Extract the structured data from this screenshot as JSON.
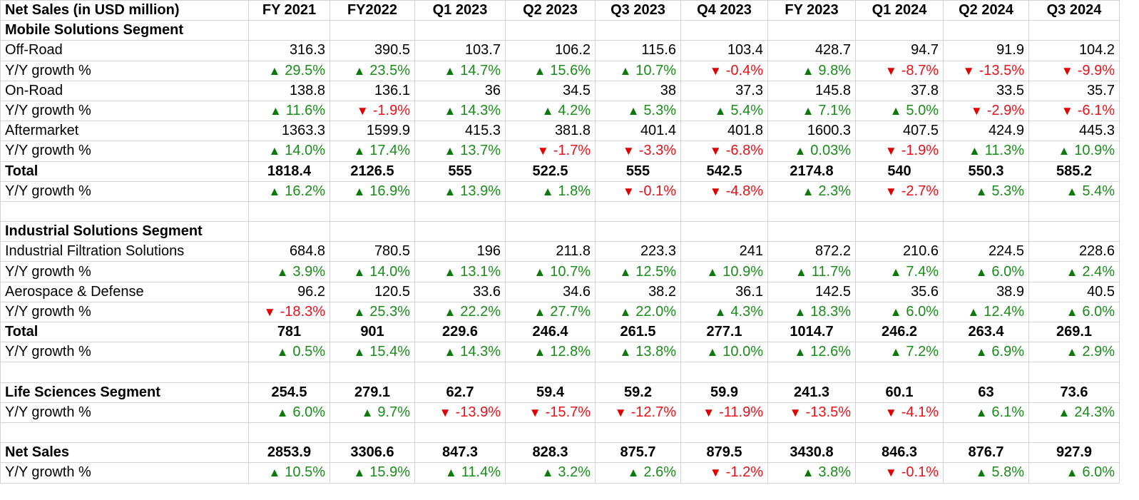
{
  "title": "Net Sales (in USD million)",
  "columns": [
    "FY 2021",
    "FY2022",
    "Q1 2023",
    "Q2 2023",
    "Q3 2023",
    "Q4 2023",
    "FY 2023",
    "Q1 2024",
    "Q2 2024",
    "Q3 2024"
  ],
  "icons": {
    "up": "triangle-up-icon",
    "down": "triangle-down-icon",
    "up_color": "#1a8c1a",
    "down_color": "#e8121a"
  },
  "rows": [
    {
      "type": "segment",
      "label": "Mobile Solutions Segment",
      "cells": []
    },
    {
      "type": "value",
      "label": "Off-Road",
      "cells": [
        "316.3",
        "390.5",
        "103.7",
        "106.2",
        "115.6",
        "103.4",
        "428.7",
        "94.7",
        "91.9",
        "104.2"
      ]
    },
    {
      "type": "growth",
      "label": "Y/Y growth %",
      "cells": [
        {
          "dir": "up",
          "text": "29.5%"
        },
        {
          "dir": "up",
          "text": "23.5%"
        },
        {
          "dir": "up",
          "text": "14.7%"
        },
        {
          "dir": "up",
          "text": "15.6%"
        },
        {
          "dir": "up",
          "text": "10.7%"
        },
        {
          "dir": "down",
          "text": "-0.4%"
        },
        {
          "dir": "up",
          "text": "9.8%"
        },
        {
          "dir": "down",
          "text": "-8.7%"
        },
        {
          "dir": "down",
          "text": "-13.5%"
        },
        {
          "dir": "down",
          "text": "-9.9%"
        }
      ]
    },
    {
      "type": "value",
      "label": "On-Road",
      "cells": [
        "138.8",
        "136.1",
        "36",
        "34.5",
        "38",
        "37.3",
        "145.8",
        "37.8",
        "33.5",
        "35.7"
      ]
    },
    {
      "type": "growth",
      "label": "Y/Y growth %",
      "cells": [
        {
          "dir": "up",
          "text": "11.6%"
        },
        {
          "dir": "down",
          "text": "-1.9%"
        },
        {
          "dir": "up",
          "text": "14.3%"
        },
        {
          "dir": "up",
          "text": "4.2%"
        },
        {
          "dir": "up",
          "text": "5.3%"
        },
        {
          "dir": "up",
          "text": "5.4%"
        },
        {
          "dir": "up",
          "text": "7.1%"
        },
        {
          "dir": "up",
          "text": "5.0%"
        },
        {
          "dir": "down",
          "text": "-2.9%"
        },
        {
          "dir": "down",
          "text": "-6.1%"
        }
      ]
    },
    {
      "type": "value",
      "label": "Aftermarket",
      "cells": [
        "1363.3",
        "1599.9",
        "415.3",
        "381.8",
        "401.4",
        "401.8",
        "1600.3",
        "407.5",
        "424.9",
        "445.3"
      ]
    },
    {
      "type": "growth",
      "label": "Y/Y growth %",
      "cells": [
        {
          "dir": "up",
          "text": "14.0%"
        },
        {
          "dir": "up",
          "text": "17.4%"
        },
        {
          "dir": "up",
          "text": "13.7%"
        },
        {
          "dir": "down",
          "text": "-1.7%"
        },
        {
          "dir": "down",
          "text": "-3.3%"
        },
        {
          "dir": "down",
          "text": "-6.8%"
        },
        {
          "dir": "up",
          "text": "0.03%"
        },
        {
          "dir": "down",
          "text": "-1.9%"
        },
        {
          "dir": "up",
          "text": "11.3%"
        },
        {
          "dir": "up",
          "text": "10.9%"
        }
      ]
    },
    {
      "type": "total",
      "label": "Total",
      "cells": [
        "1818.4",
        "2126.5",
        "555",
        "522.5",
        "555",
        "542.5",
        "2174.8",
        "540",
        "550.3",
        "585.2"
      ]
    },
    {
      "type": "growth",
      "label": "Y/Y growth %",
      "cells": [
        {
          "dir": "up",
          "text": "16.2%"
        },
        {
          "dir": "up",
          "text": "16.9%"
        },
        {
          "dir": "up",
          "text": "13.9%"
        },
        {
          "dir": "up",
          "text": "1.8%"
        },
        {
          "dir": "down",
          "text": "-0.1%"
        },
        {
          "dir": "down",
          "text": "-4.8%"
        },
        {
          "dir": "up",
          "text": "2.3%"
        },
        {
          "dir": "down",
          "text": "-2.7%"
        },
        {
          "dir": "up",
          "text": "5.3%"
        },
        {
          "dir": "up",
          "text": "5.4%"
        }
      ]
    },
    {
      "type": "blank",
      "label": "",
      "cells": []
    },
    {
      "type": "segment",
      "label": "Industrial Solutions Segment",
      "cells": []
    },
    {
      "type": "value",
      "label": "Industrial Filtration Solutions",
      "cells": [
        "684.8",
        "780.5",
        "196",
        "211.8",
        "223.3",
        "241",
        "872.2",
        "210.6",
        "224.5",
        "228.6"
      ]
    },
    {
      "type": "growth",
      "label": "Y/Y growth %",
      "cells": [
        {
          "dir": "up",
          "text": "3.9%"
        },
        {
          "dir": "up",
          "text": "14.0%"
        },
        {
          "dir": "up",
          "text": "13.1%"
        },
        {
          "dir": "up",
          "text": "10.7%"
        },
        {
          "dir": "up",
          "text": "12.5%"
        },
        {
          "dir": "up",
          "text": "10.9%"
        },
        {
          "dir": "up",
          "text": "11.7%"
        },
        {
          "dir": "up",
          "text": "7.4%"
        },
        {
          "dir": "up",
          "text": "6.0%"
        },
        {
          "dir": "up",
          "text": "2.4%"
        }
      ]
    },
    {
      "type": "value",
      "label": "Aerospace & Defense",
      "cells": [
        "96.2",
        "120.5",
        "33.6",
        "34.6",
        "38.2",
        "36.1",
        "142.5",
        "35.6",
        "38.9",
        "40.5"
      ]
    },
    {
      "type": "growth",
      "label": "Y/Y growth %",
      "cells": [
        {
          "dir": "down",
          "text": "-18.3%"
        },
        {
          "dir": "up",
          "text": "25.3%"
        },
        {
          "dir": "up",
          "text": "22.2%"
        },
        {
          "dir": "up",
          "text": "27.7%"
        },
        {
          "dir": "up",
          "text": "22.0%"
        },
        {
          "dir": "up",
          "text": "4.3%"
        },
        {
          "dir": "up",
          "text": "18.3%"
        },
        {
          "dir": "up",
          "text": "6.0%"
        },
        {
          "dir": "up",
          "text": "12.4%"
        },
        {
          "dir": "up",
          "text": "6.0%"
        }
      ]
    },
    {
      "type": "total",
      "label": "Total",
      "cells": [
        "781",
        "901",
        "229.6",
        "246.4",
        "261.5",
        "277.1",
        "1014.7",
        "246.2",
        "263.4",
        "269.1"
      ]
    },
    {
      "type": "growth",
      "label": "Y/Y growth %",
      "cells": [
        {
          "dir": "up",
          "text": "0.5%"
        },
        {
          "dir": "up",
          "text": "15.4%"
        },
        {
          "dir": "up",
          "text": "14.3%"
        },
        {
          "dir": "up",
          "text": "12.8%"
        },
        {
          "dir": "up",
          "text": "13.8%"
        },
        {
          "dir": "up",
          "text": "10.0%"
        },
        {
          "dir": "up",
          "text": "12.6%"
        },
        {
          "dir": "up",
          "text": "7.2%"
        },
        {
          "dir": "up",
          "text": "6.9%"
        },
        {
          "dir": "up",
          "text": "2.9%"
        }
      ]
    },
    {
      "type": "blank",
      "label": "",
      "cells": []
    },
    {
      "type": "segtotal",
      "label": "Life Sciences Segment",
      "cells": [
        "254.5",
        "279.1",
        "62.7",
        "59.4",
        "59.2",
        "59.9",
        "241.3",
        "60.1",
        "63",
        "73.6"
      ]
    },
    {
      "type": "growth",
      "label": "Y/Y growth %",
      "cells": [
        {
          "dir": "up",
          "text": "6.0%"
        },
        {
          "dir": "up",
          "text": "9.7%"
        },
        {
          "dir": "down",
          "text": "-13.9%"
        },
        {
          "dir": "down",
          "text": "-15.7%"
        },
        {
          "dir": "down",
          "text": "-12.7%"
        },
        {
          "dir": "down",
          "text": "-11.9%"
        },
        {
          "dir": "down",
          "text": "-13.5%"
        },
        {
          "dir": "down",
          "text": "-4.1%"
        },
        {
          "dir": "up",
          "text": "6.1%"
        },
        {
          "dir": "up",
          "text": "24.3%"
        }
      ]
    },
    {
      "type": "blank",
      "label": "",
      "cells": []
    },
    {
      "type": "segtotal",
      "label": "Net Sales",
      "cells": [
        "2853.9",
        "3306.6",
        "847.3",
        "828.3",
        "875.7",
        "879.5",
        "3430.8",
        "846.3",
        "876.7",
        "927.9"
      ]
    },
    {
      "type": "growth",
      "label": "Y/Y growth %",
      "cells": [
        {
          "dir": "up",
          "text": "10.5%"
        },
        {
          "dir": "up",
          "text": "15.9%"
        },
        {
          "dir": "up",
          "text": "11.4%"
        },
        {
          "dir": "up",
          "text": "3.2%"
        },
        {
          "dir": "up",
          "text": "2.6%"
        },
        {
          "dir": "down",
          "text": "-1.2%"
        },
        {
          "dir": "up",
          "text": "3.8%"
        },
        {
          "dir": "down",
          "text": "-0.1%"
        },
        {
          "dir": "up",
          "text": "5.8%"
        },
        {
          "dir": "up",
          "text": "6.0%"
        }
      ]
    }
  ]
}
